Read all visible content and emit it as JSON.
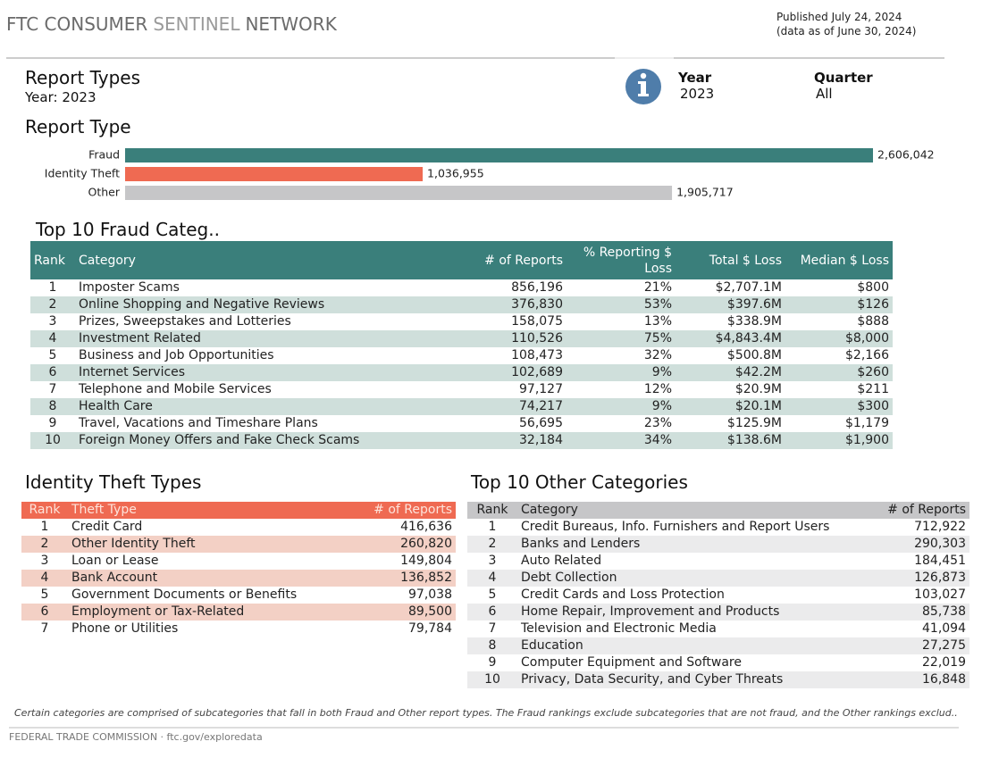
{
  "header": {
    "brand": [
      "FTC CONSUMER",
      "SENTINEL",
      "NETWORK"
    ],
    "published": "Published July 24, 2024",
    "data_as_of": "(data as of June 30, 2024)"
  },
  "report": {
    "title": "Report Types",
    "subtitle": "Year: 2023",
    "filters": [
      {
        "label": "Year",
        "value": "2023"
      },
      {
        "label": "Quarter",
        "value": "All"
      }
    ]
  },
  "chart_data": {
    "type": "bar",
    "orientation": "horizontal",
    "title": "Report Type",
    "categories": [
      "Fraud",
      "Identity Theft",
      "Other"
    ],
    "values": [
      2606042,
      1036955,
      1905717
    ],
    "value_labels": [
      "2,606,042",
      "1,036,955",
      "1,905,717"
    ],
    "colors": [
      "#3a7f7b",
      "#ef6a52",
      "#c6c6c8"
    ]
  },
  "fraud_table": {
    "title": "Top 10 Fraud Categ..",
    "columns": [
      "Rank",
      "Category",
      "# of Reports",
      "% Reporting $ Loss",
      "Total $ Loss",
      "Median $ Loss"
    ],
    "rows": [
      [
        "1",
        "Imposter Scams",
        "856,196",
        "21%",
        "$2,707.1M",
        "$800"
      ],
      [
        "2",
        "Online Shopping and Negative Reviews",
        "376,830",
        "53%",
        "$397.6M",
        "$126"
      ],
      [
        "3",
        "Prizes, Sweepstakes and Lotteries",
        "158,075",
        "13%",
        "$338.9M",
        "$888"
      ],
      [
        "4",
        "Investment Related",
        "110,526",
        "75%",
        "$4,843.4M",
        "$8,000"
      ],
      [
        "5",
        "Business and Job Opportunities",
        "108,473",
        "32%",
        "$500.8M",
        "$2,166"
      ],
      [
        "6",
        "Internet Services",
        "102,689",
        "9%",
        "$42.2M",
        "$260"
      ],
      [
        "7",
        "Telephone and Mobile Services",
        "97,127",
        "12%",
        "$20.9M",
        "$211"
      ],
      [
        "8",
        "Health Care",
        "74,217",
        "9%",
        "$20.1M",
        "$300"
      ],
      [
        "9",
        "Travel, Vacations and Timeshare Plans",
        "56,695",
        "23%",
        "$125.9M",
        "$1,179"
      ],
      [
        "10",
        "Foreign Money Offers and Fake Check Scams",
        "32,184",
        "34%",
        "$138.6M",
        "$1,900"
      ]
    ]
  },
  "identity_table": {
    "title": "Identity Theft Types",
    "columns": [
      "Rank",
      "Theft Type",
      "# of Reports"
    ],
    "rows": [
      [
        "1",
        "Credit Card",
        "416,636"
      ],
      [
        "2",
        "Other Identity Theft",
        "260,820"
      ],
      [
        "3",
        "Loan or Lease",
        "149,804"
      ],
      [
        "4",
        "Bank Account",
        "136,852"
      ],
      [
        "5",
        "Government Documents or Benefits",
        "97,038"
      ],
      [
        "6",
        "Employment or Tax-Related",
        "89,500"
      ],
      [
        "7",
        "Phone or Utilities",
        "79,784"
      ]
    ]
  },
  "other_table": {
    "title": "Top 10 Other Categories",
    "columns": [
      "Rank",
      "Category",
      "# of Reports"
    ],
    "rows": [
      [
        "1",
        "Credit Bureaus, Info. Furnishers and Report Users",
        "712,922"
      ],
      [
        "2",
        "Banks and Lenders",
        "290,303"
      ],
      [
        "3",
        "Auto Related",
        "184,451"
      ],
      [
        "4",
        "Debt Collection",
        "126,873"
      ],
      [
        "5",
        "Credit Cards and Loss Protection",
        "103,027"
      ],
      [
        "6",
        "Home Repair, Improvement and Products",
        "85,738"
      ],
      [
        "7",
        "Television and Electronic Media",
        "41,094"
      ],
      [
        "8",
        "Education",
        "27,275"
      ],
      [
        "9",
        "Computer Equipment and Software",
        "22,019"
      ],
      [
        "10",
        "Privacy, Data Security, and Cyber Threats",
        "16,848"
      ]
    ]
  },
  "footnote": "Certain categories are comprised of subcategories that fall in both Fraud and Other report types. The Fraud rankings exclude subcategories that are not fraud, and the Other rankings exclud..",
  "footer": "FEDERAL TRADE COMMISSION · ftc.gov/exploredata"
}
